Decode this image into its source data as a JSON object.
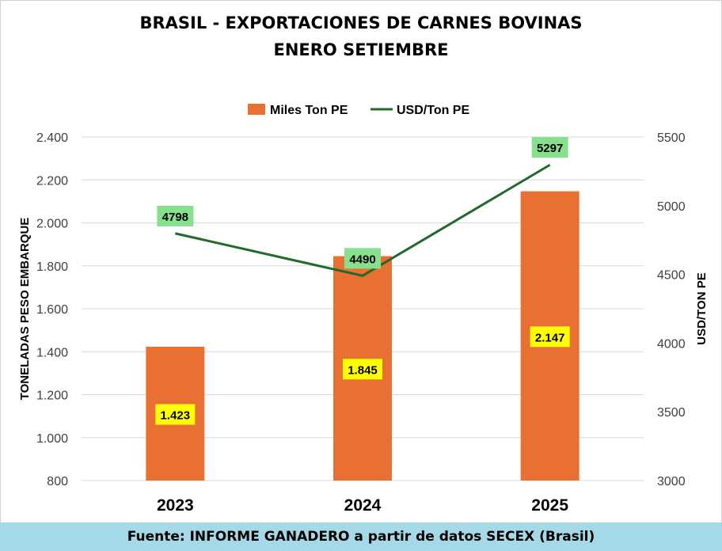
{
  "chart_data": {
    "type": "bar+line",
    "title": [
      "BRASIL - EXPORTACIONES DE CARNES BOVINAS",
      "ENERO SETIEMBRE"
    ],
    "categories": [
      "2023",
      "2024",
      "2025"
    ],
    "series": [
      {
        "name": "Miles Ton PE",
        "type": "bar",
        "axis": "left",
        "values": [
          1.423,
          1.845,
          2.147
        ],
        "labels": [
          "1.423",
          "1.845",
          "2.147"
        ],
        "color": "#e87033",
        "label_bg": "#ffff00"
      },
      {
        "name": "USD/Ton PE",
        "type": "line",
        "axis": "right",
        "values": [
          4798,
          4490,
          5297
        ],
        "labels": [
          "4798",
          "4490",
          "5297"
        ],
        "color": "#1e6b2a",
        "label_bg": "#86e08e"
      }
    ],
    "ylabel": "TONELADAS PESO EMBARQUE",
    "y2label": "USD/TON PE",
    "ylim": [
      0.8,
      2.4
    ],
    "y_ticks": [
      "2.400",
      "2.200",
      "2.000",
      "1.800",
      "1.600",
      "1.400",
      "1.200",
      "1.000",
      "800"
    ],
    "y2lim": [
      3000,
      5500
    ],
    "y2_ticks": [
      "5500",
      "5000",
      "4500",
      "4000",
      "3500",
      "3000"
    ],
    "grid": true,
    "legend": "top"
  },
  "footer": "Fuente: INFORME GANADERO a partir de datos SECEX (Brasil)"
}
